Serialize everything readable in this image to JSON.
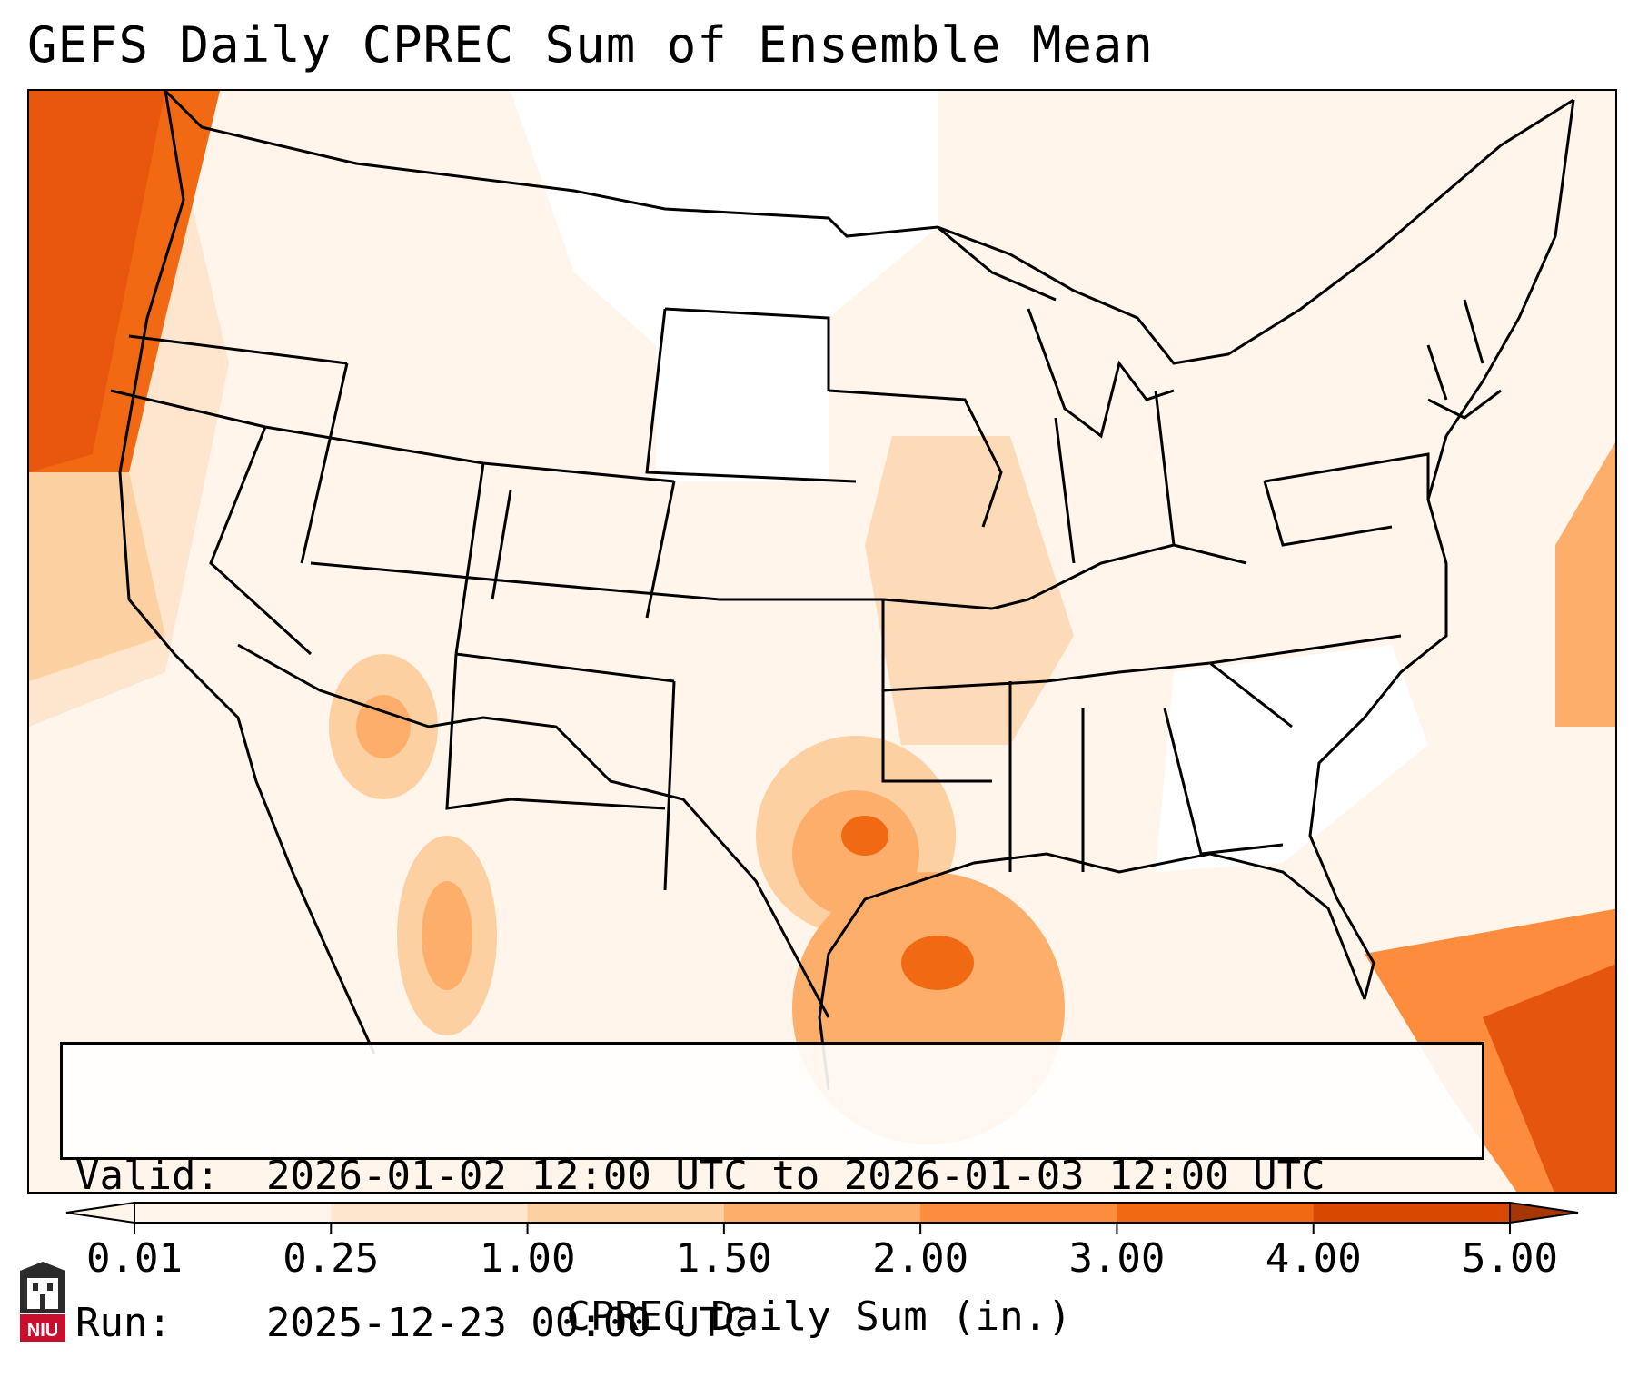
{
  "title": "GEFS Daily CPREC Sum of Ensemble Mean",
  "info": {
    "valid_label": "Valid:",
    "valid_value": "2026-01-02 12:00 UTC to 2026-01-03 12:00 UTC",
    "run_label": "Run:",
    "run_value": "2025-12-23 00:00 UTC"
  },
  "colorbar": {
    "label": "CPREC Daily Sum (in.)",
    "ticks": [
      "0.01",
      "0.25",
      "1.00",
      "1.50",
      "2.00",
      "3.00",
      "4.00",
      "5.00"
    ],
    "colors": [
      "#fff5eb",
      "#fee6ce",
      "#fdd0a2",
      "#fdae6b",
      "#fd8d3c",
      "#f16913",
      "#d94801",
      "#a63603"
    ],
    "extend": "both"
  },
  "map": {
    "region": "Continental United States",
    "colors": {
      "light": "#fff5eb",
      "low": "#fee6ce",
      "mid": "#fdd0a2",
      "high": "#fdae6b",
      "higher": "#fd8d3c",
      "highest": "#e6550d"
    }
  },
  "logo": {
    "name": "niu-logo-icon",
    "text": "NIU",
    "color": "#c8102e"
  }
}
